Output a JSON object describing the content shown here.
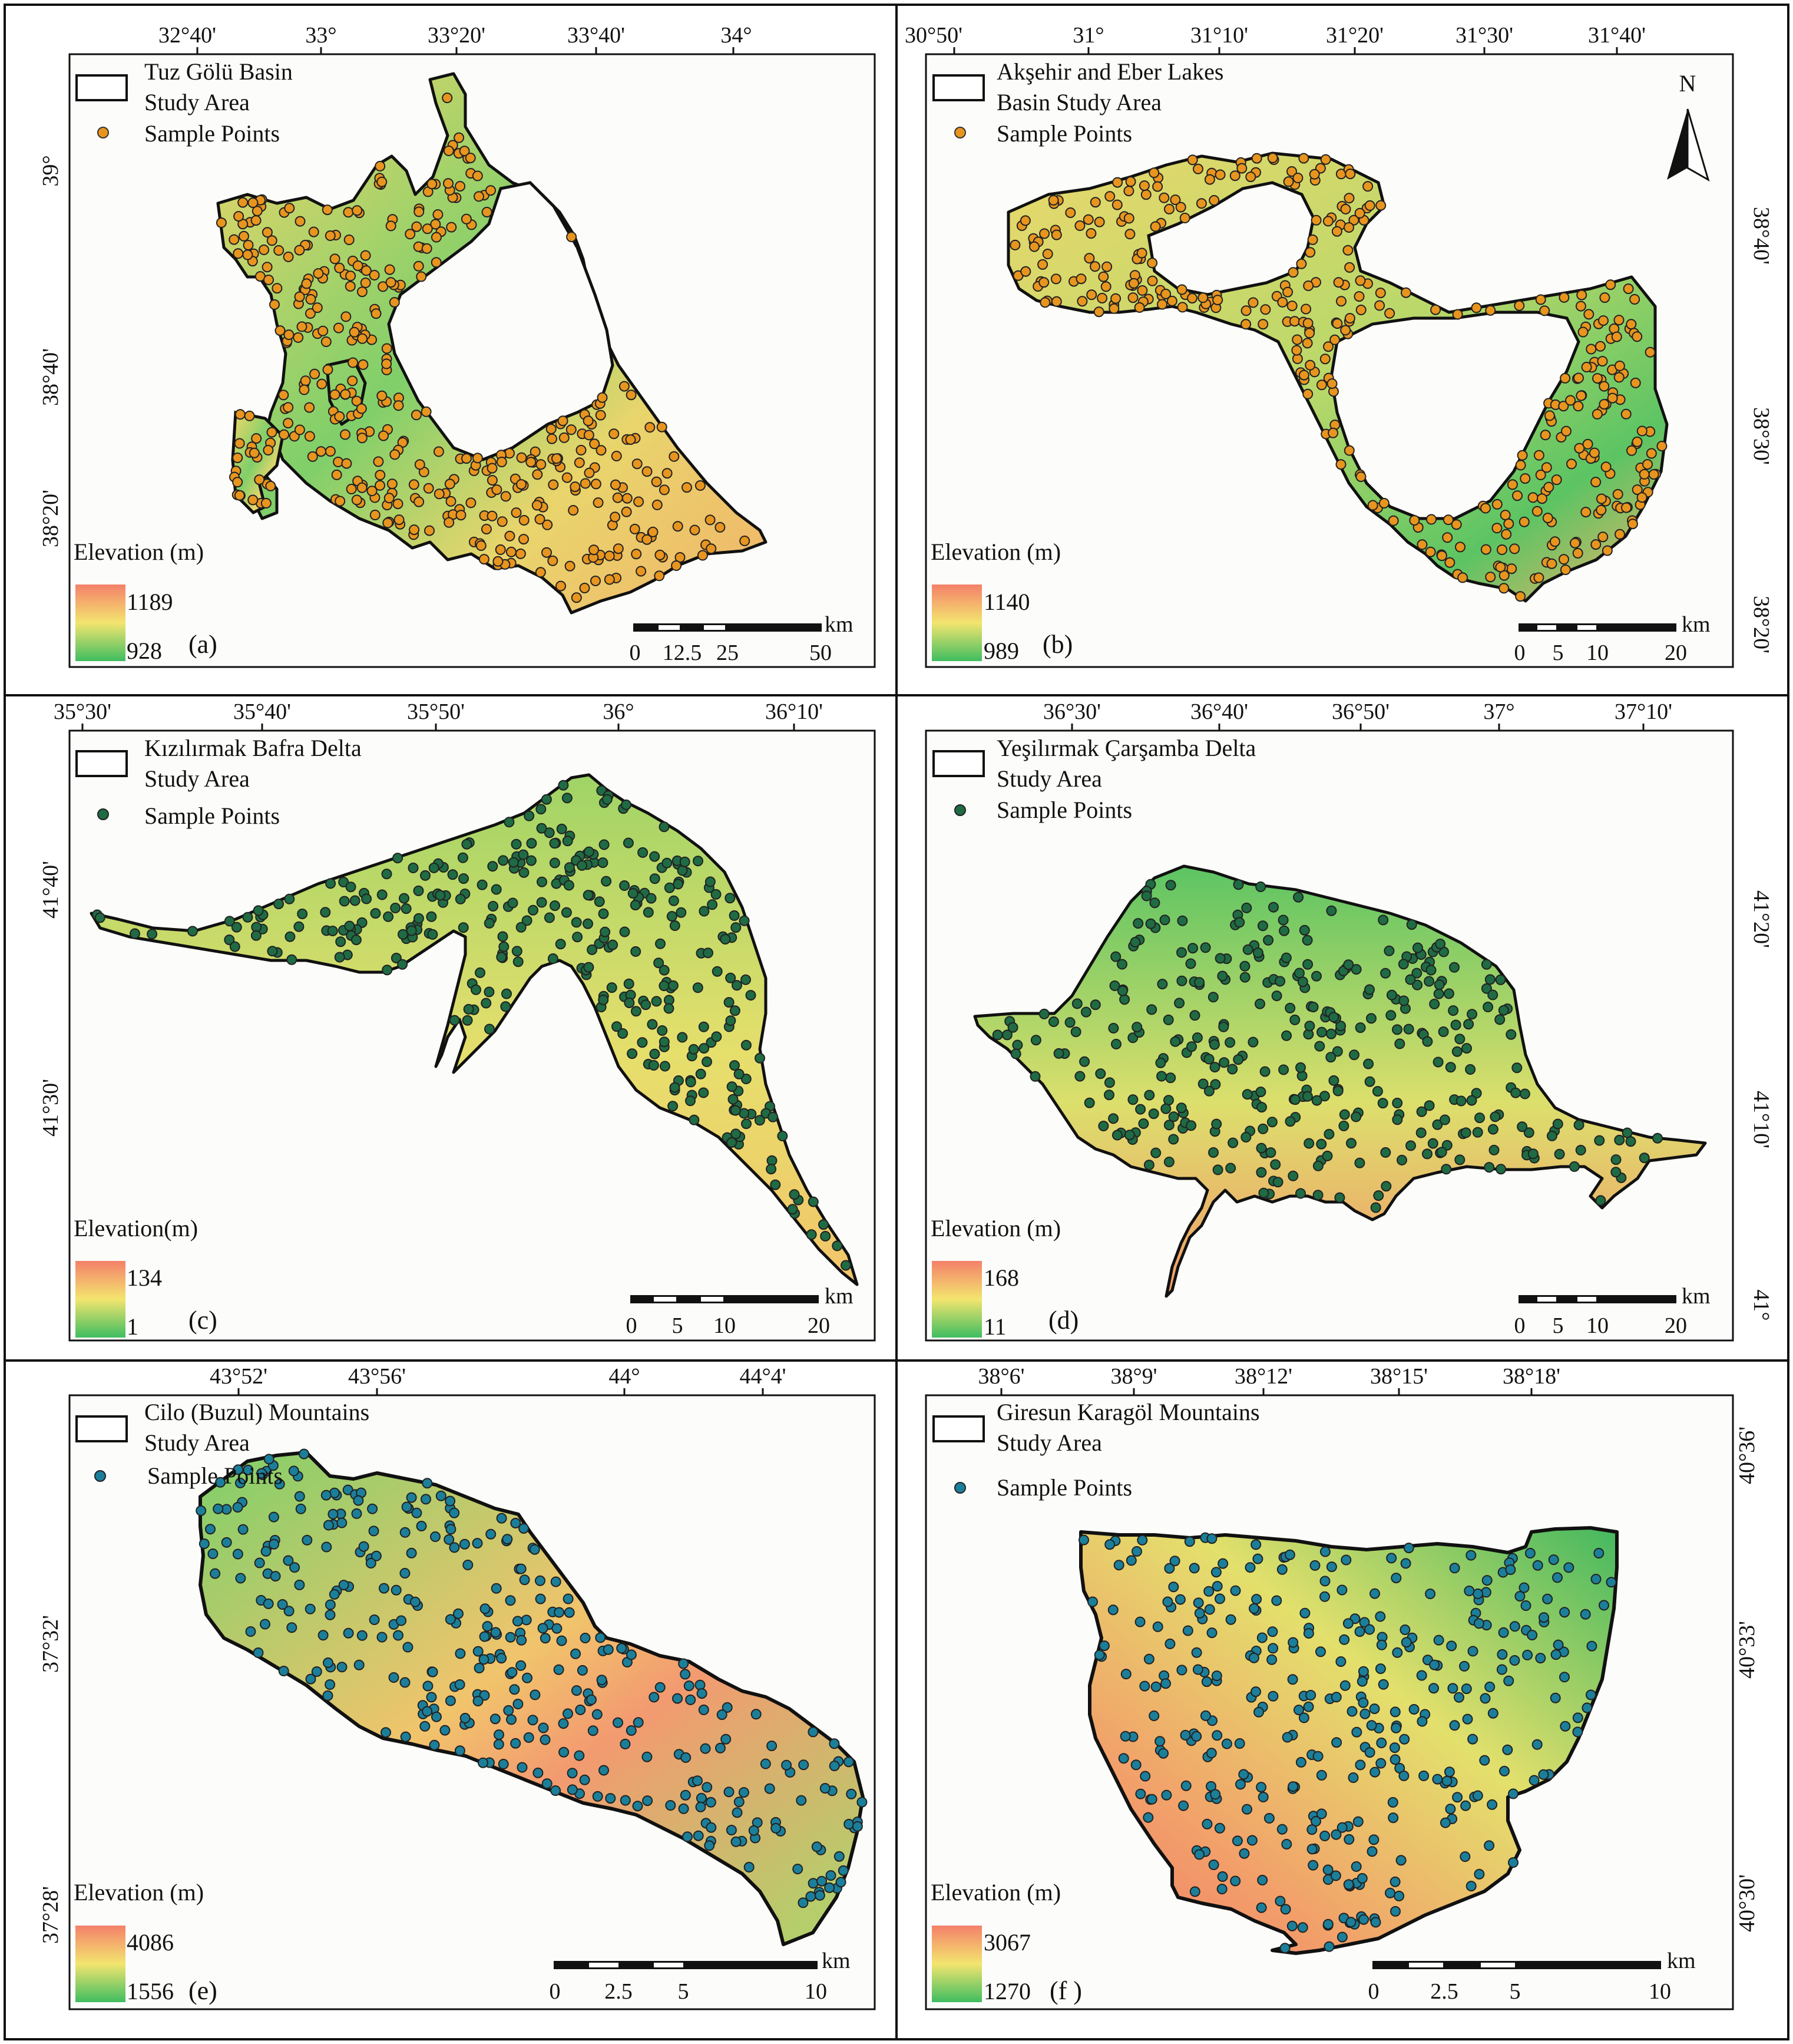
{
  "panels": [
    {
      "id": "a",
      "label": "(a)",
      "legend": {
        "title_line1": "Tuz Gölü Basin",
        "title_line2": "Study Area",
        "points_label": "Sample Points"
      },
      "top_ticks": [
        "32°40'",
        "33°",
        "33°20'",
        "33°40'",
        "34°"
      ],
      "side_ticks": [
        "39°",
        "38°40'",
        "38°20'"
      ],
      "elevation": {
        "title": "Elevation (m)",
        "max": "1189",
        "min": "928"
      },
      "scalebar": {
        "unit": "km",
        "ticks": [
          "0",
          "12.5",
          "25",
          "50"
        ]
      },
      "point_color": "#e8951f"
    },
    {
      "id": "b",
      "label": "(b)",
      "legend": {
        "title_line1": "Akşehir and Eber Lakes",
        "title_line2": "Basin Study Area",
        "points_label": "Sample Points"
      },
      "top_ticks": [
        "30°50'",
        "31°",
        "31°10'",
        "31°20'",
        "31°30'",
        "31°40'"
      ],
      "side_ticks": [
        "38°40'",
        "38°30'",
        "38°20'"
      ],
      "elevation": {
        "title": "Elevation (m)",
        "max": "1140",
        "min": "989"
      },
      "scalebar": {
        "unit": "km",
        "ticks": [
          "0",
          "5",
          "10",
          "20"
        ]
      },
      "north_letter": "N",
      "point_color": "#e8951f"
    },
    {
      "id": "c",
      "label": "(c)",
      "legend": {
        "title_line1": "Kızılırmak Bafra Delta",
        "title_line2": "Study Area",
        "points_label": "Sample Points"
      },
      "top_ticks": [
        "35°30'",
        "35°40'",
        "35°50'",
        "36°",
        "36°10'"
      ],
      "side_ticks": [
        "41°40'",
        "41°30'"
      ],
      "elevation": {
        "title": "Elevation(m)",
        "max": "134",
        "min": "1"
      },
      "scalebar": {
        "unit": "km",
        "ticks": [
          "0",
          "5",
          "10",
          "20"
        ]
      },
      "point_color": "#1f6b43"
    },
    {
      "id": "d",
      "label": "(d)",
      "legend": {
        "title_line1": "Yeşilırmak Çarşamba Delta",
        "title_line2": "Study Area",
        "points_label": "Sample Points"
      },
      "top_ticks": [
        "36°30'",
        "36°40'",
        "36°50'",
        "37°",
        "37°10'"
      ],
      "side_ticks": [
        "41°20'",
        "41°10'",
        "41°"
      ],
      "elevation": {
        "title": "Elevation (m)",
        "max": "168",
        "min": "11"
      },
      "scalebar": {
        "unit": "km",
        "ticks": [
          "0",
          "5",
          "10",
          "20"
        ]
      },
      "point_color": "#1f6b43"
    },
    {
      "id": "e",
      "label": "(e)",
      "legend": {
        "title_line1": "Cilo (Buzul) Mountains",
        "title_line2": "Study Area",
        "points_label": "Sample Points"
      },
      "top_ticks": [
        "43°52'",
        "43°56'",
        "44°",
        "44°4'"
      ],
      "side_ticks": [
        "37°32'",
        "37°28'"
      ],
      "elevation": {
        "title": "Elevation (m)",
        "max": "4086",
        "min": "1556"
      },
      "scalebar": {
        "unit": "km",
        "ticks": [
          "0",
          "2.5",
          "5",
          "10"
        ]
      },
      "point_color": "#1b7f9a"
    },
    {
      "id": "f",
      "label": "(f )",
      "legend": {
        "title_line1": "Giresun Karagöl Mountains",
        "title_line2": "Study Area",
        "points_label": "Sample Points"
      },
      "top_ticks": [
        "38°6'",
        "38°9'",
        "38°12'",
        "38°15'",
        "38°18'"
      ],
      "side_ticks": [
        "40°36'",
        "40°33'",
        "40°30'"
      ],
      "elevation": {
        "title": "Elevation (m)",
        "max": "3067",
        "min": "1270"
      },
      "scalebar": {
        "unit": "km",
        "ticks": [
          "0",
          "2.5",
          "5",
          "10"
        ]
      },
      "point_color": "#1b7f9a"
    }
  ],
  "colors": {
    "elev_high": "#f4806a",
    "elev_mid": "#f3e56f",
    "elev_low": "#3fbd60",
    "outline": "#111111",
    "frame": "#111111"
  }
}
